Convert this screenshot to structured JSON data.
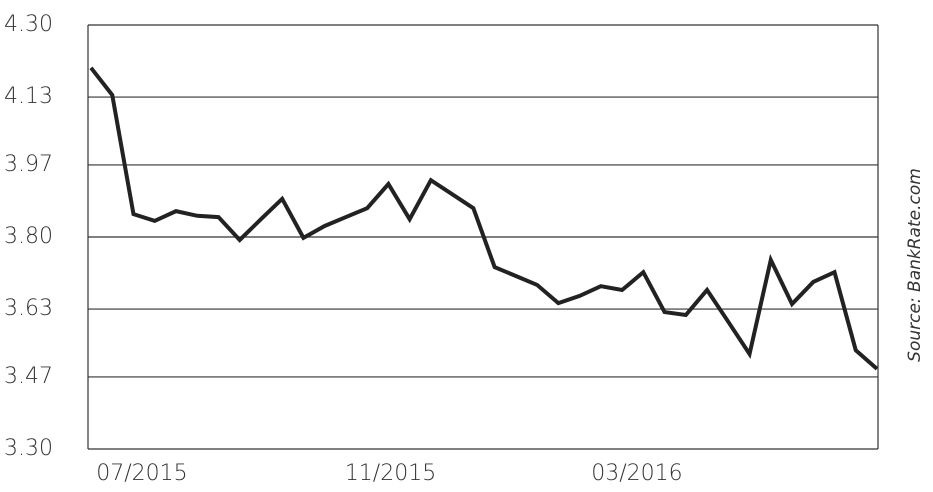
{
  "chart_data": {
    "type": "line",
    "source": "Source: BankRate.com",
    "x": [
      0,
      1,
      2,
      3,
      4,
      5,
      6,
      7,
      8,
      9,
      10,
      11,
      12,
      13,
      14,
      15,
      16,
      17,
      18,
      19,
      20,
      21,
      22,
      23,
      24,
      25,
      26,
      27,
      28,
      29,
      30,
      31,
      32,
      33,
      34,
      35,
      36,
      37
    ],
    "series": [
      {
        "color": "#222222",
        "values": [
          4.199,
          4.135,
          3.854,
          3.838,
          3.861,
          3.85,
          3.847,
          3.793,
          3.842,
          3.89,
          3.798,
          3.826,
          3.847,
          3.868,
          3.925,
          3.842,
          3.934,
          3.901,
          3.868,
          3.729,
          3.708,
          3.687,
          3.644,
          3.661,
          3.684,
          3.675,
          3.717,
          3.623,
          3.616,
          3.675,
          3.6,
          3.524,
          3.746,
          3.642,
          3.694,
          3.717,
          3.533,
          3.489
        ]
      }
    ],
    "xlim": [
      0,
      37
    ],
    "xticks": [
      {
        "value": 2.4,
        "label": "07/2015"
      },
      {
        "value": 14.1,
        "label": "11/2015"
      },
      {
        "value": 25.7,
        "label": "03/2016"
      }
    ],
    "ylim": [
      3.3,
      4.3
    ],
    "yticks": [
      {
        "value": 3.3,
        "label": "3.30"
      },
      3.47,
      3.63,
      {
        "value": 3.8,
        "label": "3.80"
      },
      3.97,
      4.13,
      {
        "value": 4.3,
        "label": "4.30"
      }
    ],
    "grid": true
  }
}
